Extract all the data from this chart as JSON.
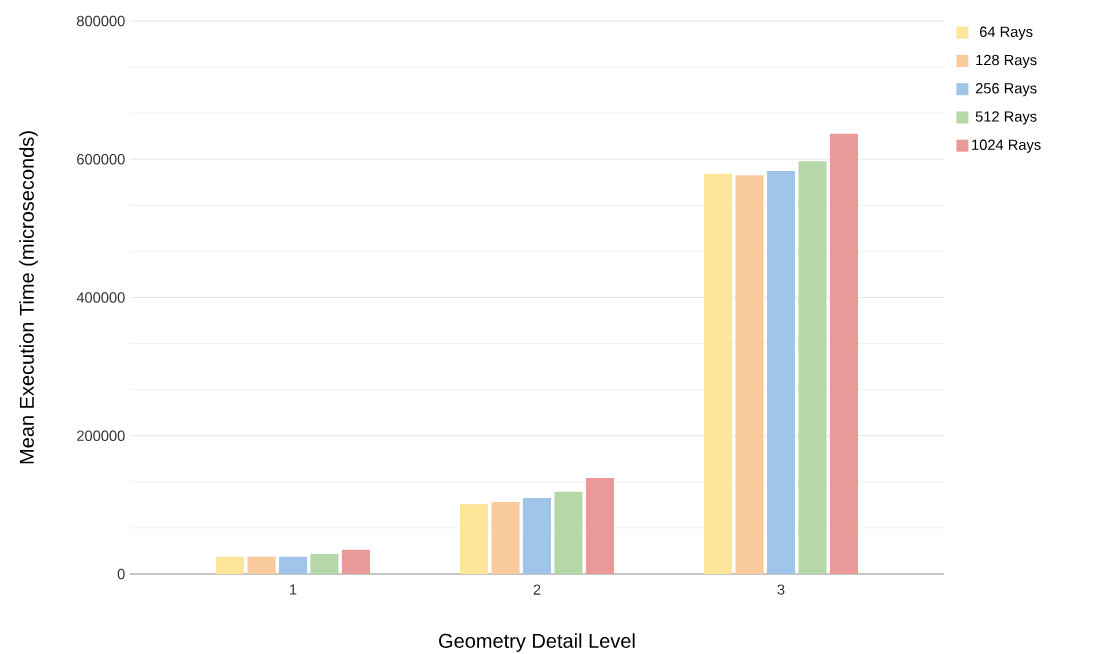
{
  "chart_data": {
    "type": "bar",
    "xlabel": "Geometry Detail Level",
    "ylabel": "Mean Execution Time (microseconds)",
    "categories": [
      "1",
      "2",
      "3"
    ],
    "series": [
      {
        "name": "64 Rays",
        "color": "#ffe599",
        "values": [
          25000,
          101000,
          579000
        ]
      },
      {
        "name": "128 Rays",
        "color": "#f9cb9c",
        "values": [
          25000,
          104000,
          577000
        ]
      },
      {
        "name": "256 Rays",
        "color": "#9fc5e8",
        "values": [
          25000,
          110000,
          583000
        ]
      },
      {
        "name": "512 Rays",
        "color": "#b6d7a8",
        "values": [
          29000,
          119000,
          597000
        ]
      },
      {
        "name": "1024 Rays",
        "color": "#ea9999",
        "values": [
          35000,
          139000,
          637000
        ]
      }
    ],
    "ylim": [
      0,
      800000
    ],
    "yticks": [
      0,
      200000,
      400000,
      600000,
      800000
    ],
    "grid": "y",
    "legend": "top right"
  }
}
